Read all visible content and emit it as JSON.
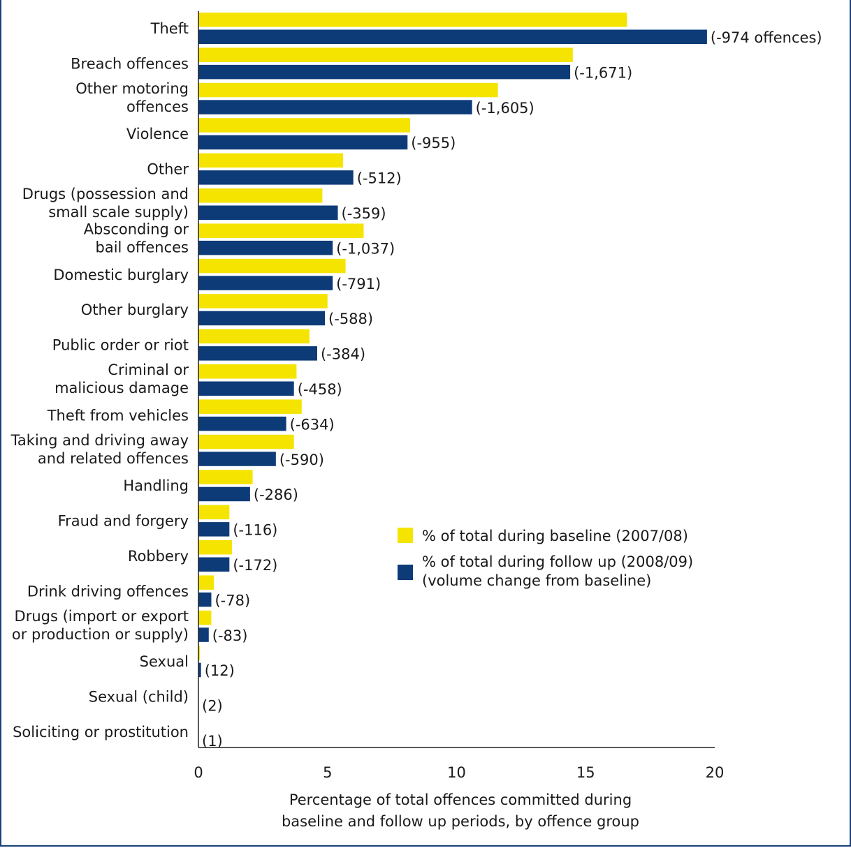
{
  "chart_data": {
    "type": "bar",
    "orientation": "horizontal",
    "categories": [
      [
        "Theft"
      ],
      [
        "Breach offences"
      ],
      [
        "Other motoring",
        "offences"
      ],
      [
        "Violence"
      ],
      [
        "Other"
      ],
      [
        "Drugs (possession and",
        "small scale supply)"
      ],
      [
        "Absconding or",
        "bail offences"
      ],
      [
        "Domestic burglary"
      ],
      [
        "Other burglary"
      ],
      [
        "Public order or riot"
      ],
      [
        "Criminal or",
        "malicious damage"
      ],
      [
        "Theft from vehicles"
      ],
      [
        "Taking and driving away",
        "and related offences"
      ],
      [
        "Handling"
      ],
      [
        "Fraud and forgery"
      ],
      [
        "Robbery"
      ],
      [
        "Drink driving offences"
      ],
      [
        "Drugs (import or export",
        "or production or supply)"
      ],
      [
        "Sexual"
      ],
      [
        "Sexual (child)"
      ],
      [
        "Soliciting or prostitution"
      ]
    ],
    "series": [
      {
        "name": "% of total during baseline (2007/08)",
        "color": "#f5e400",
        "values": [
          16.6,
          14.5,
          11.6,
          8.2,
          5.6,
          4.8,
          6.4,
          5.7,
          5.0,
          4.3,
          3.8,
          4.0,
          3.7,
          2.1,
          1.2,
          1.3,
          0.6,
          0.5,
          0.06,
          0.0,
          0.0
        ]
      },
      {
        "name": "% of total during follow up (2008/09)",
        "name_line2": "(volume change from baseline)",
        "color": "#0c3b78",
        "values": [
          19.7,
          14.4,
          10.6,
          8.1,
          6.0,
          5.4,
          5.2,
          5.2,
          4.9,
          4.6,
          3.7,
          3.4,
          3.0,
          2.0,
          1.2,
          1.2,
          0.5,
          0.4,
          0.1,
          0.0,
          0.0
        ],
        "data_labels": [
          "(-974 offences)",
          "(-1,671)",
          "(-1,605)",
          "(-955)",
          "(-512)",
          "(-359)",
          "(-1,037)",
          "(-791)",
          "(-588)",
          "(-384)",
          "(-458)",
          "(-634)",
          "(-590)",
          "(-286)",
          "(-116)",
          "(-172)",
          "(-78)",
          "(-83)",
          "(12)",
          "(2)",
          "(1)"
        ]
      }
    ],
    "xlim": [
      0,
      20
    ],
    "xticks": [
      0,
      5,
      10,
      15,
      20
    ],
    "xlabel": [
      "Percentage of total offences committed during",
      "baseline and follow up periods, by offence group"
    ],
    "title": "",
    "ylabel": "",
    "grid": false,
    "legend_position": "center-right"
  }
}
